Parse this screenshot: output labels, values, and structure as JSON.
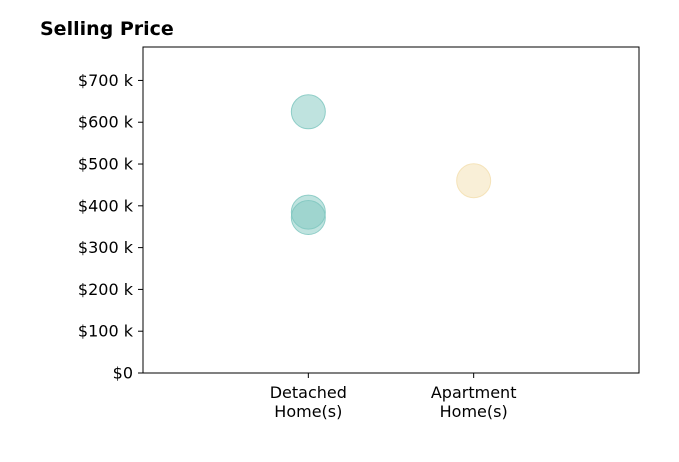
{
  "chart_data": {
    "type": "scatter",
    "title": "Selling Price",
    "xlabel": "",
    "ylabel": "",
    "categories": [
      [
        "Detached",
        "Home(s)"
      ],
      [
        "Apartment",
        "Home(s)"
      ]
    ],
    "xlim": [
      -1,
      2
    ],
    "ylim": [
      0,
      780
    ],
    "yticks": [
      0,
      100,
      200,
      300,
      400,
      500,
      600,
      700
    ],
    "ytick_labels": [
      "$0",
      "$100 k",
      "$200 k",
      "$300 k",
      "$400 k",
      "$500 k",
      "$600 k",
      "$700 k"
    ],
    "grid": false,
    "points": [
      {
        "category_index": 0,
        "value": 625,
        "color": "#7fc7bf"
      },
      {
        "category_index": 0,
        "value": 385,
        "color": "#7fc7bf"
      },
      {
        "category_index": 0,
        "value": 372,
        "color": "#7fc7bf"
      },
      {
        "category_index": 1,
        "value": 460,
        "color": "#f3dfb0"
      }
    ],
    "marker_alpha": 0.5
  }
}
